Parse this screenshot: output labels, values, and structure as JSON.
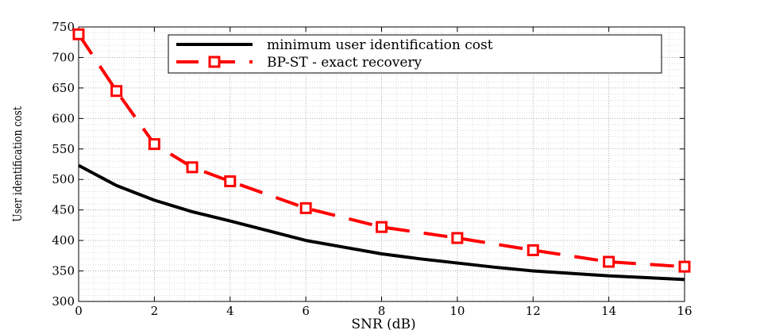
{
  "chart_data": {
    "type": "line",
    "title": "",
    "xlabel": "SNR (dB)",
    "ylabel": "User identification cost",
    "xlim": [
      0,
      16
    ],
    "ylim": [
      300,
      750
    ],
    "xticks": [
      0,
      2,
      4,
      6,
      8,
      10,
      12,
      14,
      16
    ],
    "yticks": [
      300,
      350,
      400,
      450,
      500,
      550,
      600,
      650,
      700,
      750
    ],
    "grid": true,
    "legend_position": "top-right",
    "series": [
      {
        "name": "minimum user identification cost",
        "color": "#000000",
        "style": "solid",
        "marker": "none",
        "x": [
          0,
          1,
          2,
          3,
          4,
          5,
          6,
          7,
          8,
          9,
          10,
          11,
          12,
          13,
          14,
          15,
          16
        ],
        "y": [
          523,
          490,
          466,
          447,
          432,
          416,
          400,
          389,
          378,
          370,
          363,
          356,
          350,
          346,
          342,
          339,
          336
        ]
      },
      {
        "name": "BP-ST - exact recovery",
        "color": "#ff0000",
        "style": "dashed",
        "marker": "square",
        "x": [
          0,
          1,
          2,
          3,
          4,
          6,
          8,
          10,
          12,
          14,
          16
        ],
        "y": [
          738,
          645,
          558,
          520,
          497,
          453,
          422,
          404,
          384,
          365,
          357
        ]
      }
    ]
  }
}
